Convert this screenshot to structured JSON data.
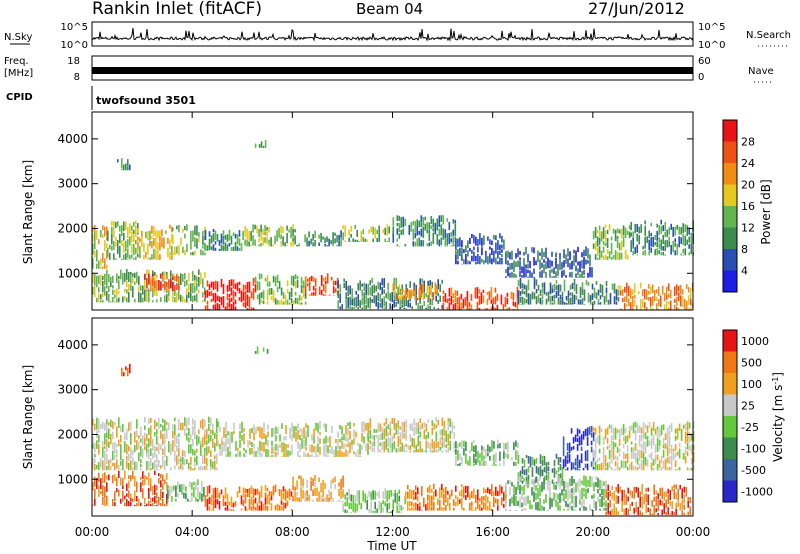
{
  "header": {
    "title": "Rankin Inlet (fitACF)",
    "beam": "Beam 04",
    "date": "27/Jun/2012"
  },
  "top_panels": {
    "nsky_label": "N.Sky",
    "nsky_ticks": [
      "10^5",
      "10^0"
    ],
    "nsearch_label": "N.Search",
    "nsearch_ticks": [
      "10^5",
      "10^0"
    ],
    "freq_label": "Freq.",
    "freq_unit": "[MHz]",
    "freq_ticks": [
      "18",
      "8"
    ],
    "nave_label": "Nave",
    "nave_ticks": [
      "60",
      "0"
    ],
    "cpid_label": "CPID",
    "cpid_value": "twofsound 3501"
  },
  "x_axis": {
    "label": "Time UT",
    "ticks": [
      "00:00",
      "04:00",
      "08:00",
      "12:00",
      "16:00",
      "20:00",
      "00:00"
    ]
  },
  "colors": {
    "power": [
      "#1e1ee6",
      "#2850b4",
      "#3c8c50",
      "#64b450",
      "#e6c81e",
      "#f08c14",
      "#f05014",
      "#e61414"
    ],
    "velocity": [
      "#2828c8",
      "#3c64a0",
      "#3c8c50",
      "#64c83c",
      "#c8c8c8",
      "#f0a020",
      "#f07814",
      "#e61414"
    ]
  },
  "chart_data": [
    {
      "type": "heatmap",
      "panel": "power",
      "ylabel": "Slant Range [km]",
      "yticks": [
        "4000",
        "3000",
        "2000",
        "1000"
      ],
      "ylim": [
        180,
        4600
      ],
      "xlim_hours": [
        0,
        24
      ],
      "colorbar": {
        "label": "Power [dB]",
        "ticks": [
          "28",
          "24",
          "20",
          "16",
          "12",
          "8",
          "4"
        ]
      },
      "regions": [
        {
          "x0": 0.0,
          "x1": 0.6,
          "y0": 1100,
          "y1": 2100,
          "level": 4
        },
        {
          "x0": 0.6,
          "x1": 1.8,
          "y0": 1300,
          "y1": 2200,
          "level": 3
        },
        {
          "x0": 1.8,
          "x1": 3.2,
          "y0": 1300,
          "y1": 2100,
          "level": 4
        },
        {
          "x0": 3.2,
          "x1": 4.5,
          "y0": 1400,
          "y1": 2100,
          "level": 3
        },
        {
          "x0": 4.5,
          "x1": 6.0,
          "y0": 1500,
          "y1": 2000,
          "level": 2
        },
        {
          "x0": 6.0,
          "x1": 8.0,
          "y0": 1600,
          "y1": 2100,
          "level": 3
        },
        {
          "x0": 8.0,
          "x1": 10.0,
          "y0": 1600,
          "y1": 2000,
          "level": 2
        },
        {
          "x0": 10.0,
          "x1": 12.0,
          "y0": 1700,
          "y1": 2100,
          "level": 3
        },
        {
          "x0": 12.0,
          "x1": 14.5,
          "y0": 1600,
          "y1": 2300,
          "level": 2
        },
        {
          "x0": 14.5,
          "x1": 16.5,
          "y0": 1200,
          "y1": 1900,
          "level": 1
        },
        {
          "x0": 16.5,
          "x1": 20.0,
          "y0": 900,
          "y1": 1600,
          "level": 1
        },
        {
          "x0": 20.0,
          "x1": 21.5,
          "y0": 1300,
          "y1": 2100,
          "level": 3
        },
        {
          "x0": 21.5,
          "x1": 24.0,
          "y0": 1400,
          "y1": 2200,
          "level": 2
        },
        {
          "x0": 0.0,
          "x1": 4.5,
          "y0": 350,
          "y1": 1100,
          "level": 3
        },
        {
          "x0": 2.0,
          "x1": 3.5,
          "y0": 600,
          "y1": 1000,
          "level": 6
        },
        {
          "x0": 4.5,
          "x1": 6.5,
          "y0": 180,
          "y1": 900,
          "level": 7
        },
        {
          "x0": 6.5,
          "x1": 8.5,
          "y0": 300,
          "y1": 1000,
          "level": 3
        },
        {
          "x0": 8.5,
          "x1": 9.8,
          "y0": 500,
          "y1": 1000,
          "level": 6
        },
        {
          "x0": 9.8,
          "x1": 14.0,
          "y0": 200,
          "y1": 900,
          "level": 2
        },
        {
          "x0": 12.0,
          "x1": 13.8,
          "y0": 400,
          "y1": 800,
          "level": 5
        },
        {
          "x0": 14.0,
          "x1": 17.0,
          "y0": 180,
          "y1": 700,
          "level": 6
        },
        {
          "x0": 17.0,
          "x1": 21.0,
          "y0": 300,
          "y1": 900,
          "level": 2
        },
        {
          "x0": 21.0,
          "x1": 24.0,
          "y0": 180,
          "y1": 800,
          "level": 5
        },
        {
          "x0": 1.0,
          "x1": 1.5,
          "y0": 3300,
          "y1": 3600,
          "level": 2
        },
        {
          "x0": 6.5,
          "x1": 7.0,
          "y0": 3800,
          "y1": 4000,
          "level": 2
        }
      ]
    },
    {
      "type": "heatmap",
      "panel": "velocity",
      "ylabel": "Slant Range [km]",
      "yticks": [
        "4000",
        "3000",
        "2000",
        "1000"
      ],
      "ylim": [
        180,
        4600
      ],
      "xlim_hours": [
        0,
        24
      ],
      "colorbar": {
        "label": "Velocity [m s^-1]",
        "ticks": [
          "1000",
          "500",
          "100",
          "25",
          "-25",
          "-100",
          "-500",
          "-1000"
        ]
      },
      "regions": [
        {
          "x0": 0.0,
          "x1": 5.0,
          "y0": 1200,
          "y1": 2400,
          "level": 4
        },
        {
          "x0": 5.0,
          "x1": 11.0,
          "y0": 1500,
          "y1": 2300,
          "level": 4
        },
        {
          "x0": 11.0,
          "x1": 14.5,
          "y0": 1600,
          "y1": 2400,
          "level": 4
        },
        {
          "x0": 14.5,
          "x1": 17.0,
          "y0": 1300,
          "y1": 1900,
          "level": 3
        },
        {
          "x0": 17.0,
          "x1": 18.8,
          "y0": 900,
          "y1": 1600,
          "level": 2
        },
        {
          "x0": 18.8,
          "x1": 20.0,
          "y0": 1200,
          "y1": 2200,
          "level": 0
        },
        {
          "x0": 20.0,
          "x1": 24.0,
          "y0": 1200,
          "y1": 2300,
          "level": 4
        },
        {
          "x0": 0.0,
          "x1": 3.0,
          "y0": 400,
          "y1": 1200,
          "level": 6
        },
        {
          "x0": 3.0,
          "x1": 4.5,
          "y0": 500,
          "y1": 1000,
          "level": 3
        },
        {
          "x0": 4.5,
          "x1": 8.0,
          "y0": 300,
          "y1": 900,
          "level": 6
        },
        {
          "x0": 8.0,
          "x1": 10.0,
          "y0": 500,
          "y1": 1100,
          "level": 5
        },
        {
          "x0": 10.0,
          "x1": 12.5,
          "y0": 250,
          "y1": 800,
          "level": 3
        },
        {
          "x0": 12.5,
          "x1": 16.5,
          "y0": 300,
          "y1": 900,
          "level": 6
        },
        {
          "x0": 16.5,
          "x1": 20.5,
          "y0": 300,
          "y1": 1100,
          "level": 3
        },
        {
          "x0": 20.5,
          "x1": 24.0,
          "y0": 200,
          "y1": 900,
          "level": 6
        },
        {
          "x0": 1.0,
          "x1": 1.5,
          "y0": 3300,
          "y1": 3600,
          "level": 6
        },
        {
          "x0": 6.5,
          "x1": 7.0,
          "y0": 3800,
          "y1": 4000,
          "level": 3
        }
      ]
    }
  ]
}
